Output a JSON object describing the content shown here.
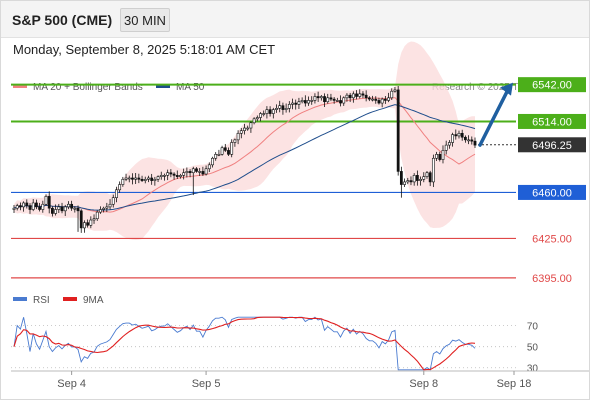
{
  "header": {
    "instrument": "S&P 500 (CME)",
    "timeframe_button": "30 MIN",
    "datetime": "Monday, September 8, 2025 5:18:01 AM CET"
  },
  "chart_data": [
    {
      "type": "candlestick",
      "legend": [
        {
          "label": "MA 20 + Bollinger Bands",
          "color": "#f08080"
        },
        {
          "label": "MA 50",
          "color": "#1f4e8c"
        }
      ],
      "credit": "Research © 2025 Trading Central",
      "x_ticks": [
        "Sep 4",
        "Sep 5",
        "Sep 8",
        "Sep 18"
      ],
      "ylim": [
        6385,
        6560
      ],
      "grid": false,
      "last_price": {
        "value": 6496.25,
        "label": "6496.25",
        "color": "#333333"
      },
      "levels": [
        {
          "value": 6542.0,
          "label": "6542.00",
          "color": "#4caf1a",
          "type": "target"
        },
        {
          "value": 6514.0,
          "label": "6514.00",
          "color": "#4caf1a",
          "type": "resistance"
        },
        {
          "value": 6460.0,
          "label": "6460.00",
          "color": "#1f5fd6",
          "type": "pivot"
        },
        {
          "value": 6425.0,
          "label": "6425.00",
          "color": "#e04848",
          "type": "support"
        },
        {
          "value": 6395.0,
          "label": "6395.00",
          "color": "#e04848",
          "type": "support"
        }
      ],
      "forecast_arrow": {
        "from": 6496,
        "to": 6542,
        "color": "#1f5fa0"
      },
      "closes": [
        6448,
        6450,
        6449,
        6452,
        6450,
        6447,
        6452,
        6449,
        6447,
        6451,
        6457,
        6448,
        6444,
        6447,
        6449,
        6446,
        6449,
        6451,
        6448,
        6448,
        6446,
        6433,
        6437,
        6435,
        6439,
        6440,
        6445,
        6447,
        6448,
        6449,
        6451,
        6456,
        6462,
        6466,
        6470,
        6471,
        6471,
        6470,
        6471,
        6470,
        6469,
        6470,
        6471,
        6469,
        6470,
        6472,
        6473,
        6473,
        6475,
        6474,
        6473,
        6472,
        6473,
        6475,
        6476,
        6475,
        6478,
        6476,
        6476,
        6474,
        6478,
        6481,
        6486,
        6489,
        6489,
        6494,
        6492,
        6489,
        6498,
        6500,
        6505,
        6507,
        6509,
        6509,
        6513,
        6516,
        6517,
        6520,
        6520,
        6523,
        6520,
        6523,
        6524,
        6526,
        6523,
        6524,
        6527,
        6528,
        6527,
        6529,
        6530,
        6528,
        6530,
        6530,
        6533,
        6532,
        6533,
        6529,
        6532,
        6531,
        6530,
        6530,
        6528,
        6532,
        6534,
        6532,
        6535,
        6533,
        6535,
        6534,
        6532,
        6531,
        6531,
        6530,
        6528,
        6531,
        6530,
        6532,
        6537,
        6538,
        6476,
        6466,
        6468,
        6469,
        6468,
        6473,
        6469,
        6470,
        6472,
        6475,
        6468,
        6486,
        6489,
        6485,
        6492,
        6496,
        6498,
        6504,
        6503,
        6505,
        6502,
        6500,
        6500,
        6499,
        6496
      ]
    },
    {
      "type": "line",
      "legend": [
        {
          "label": "RSI",
          "color": "#4a7bd0"
        },
        {
          "label": "9MA",
          "color": "#e02020"
        }
      ],
      "y_ticks": [
        70,
        50,
        30
      ],
      "ylim": [
        25,
        82
      ],
      "x_ticks": [
        "Sep 4",
        "Sep 5",
        "Sep 8",
        "Sep 18"
      ]
    }
  ]
}
